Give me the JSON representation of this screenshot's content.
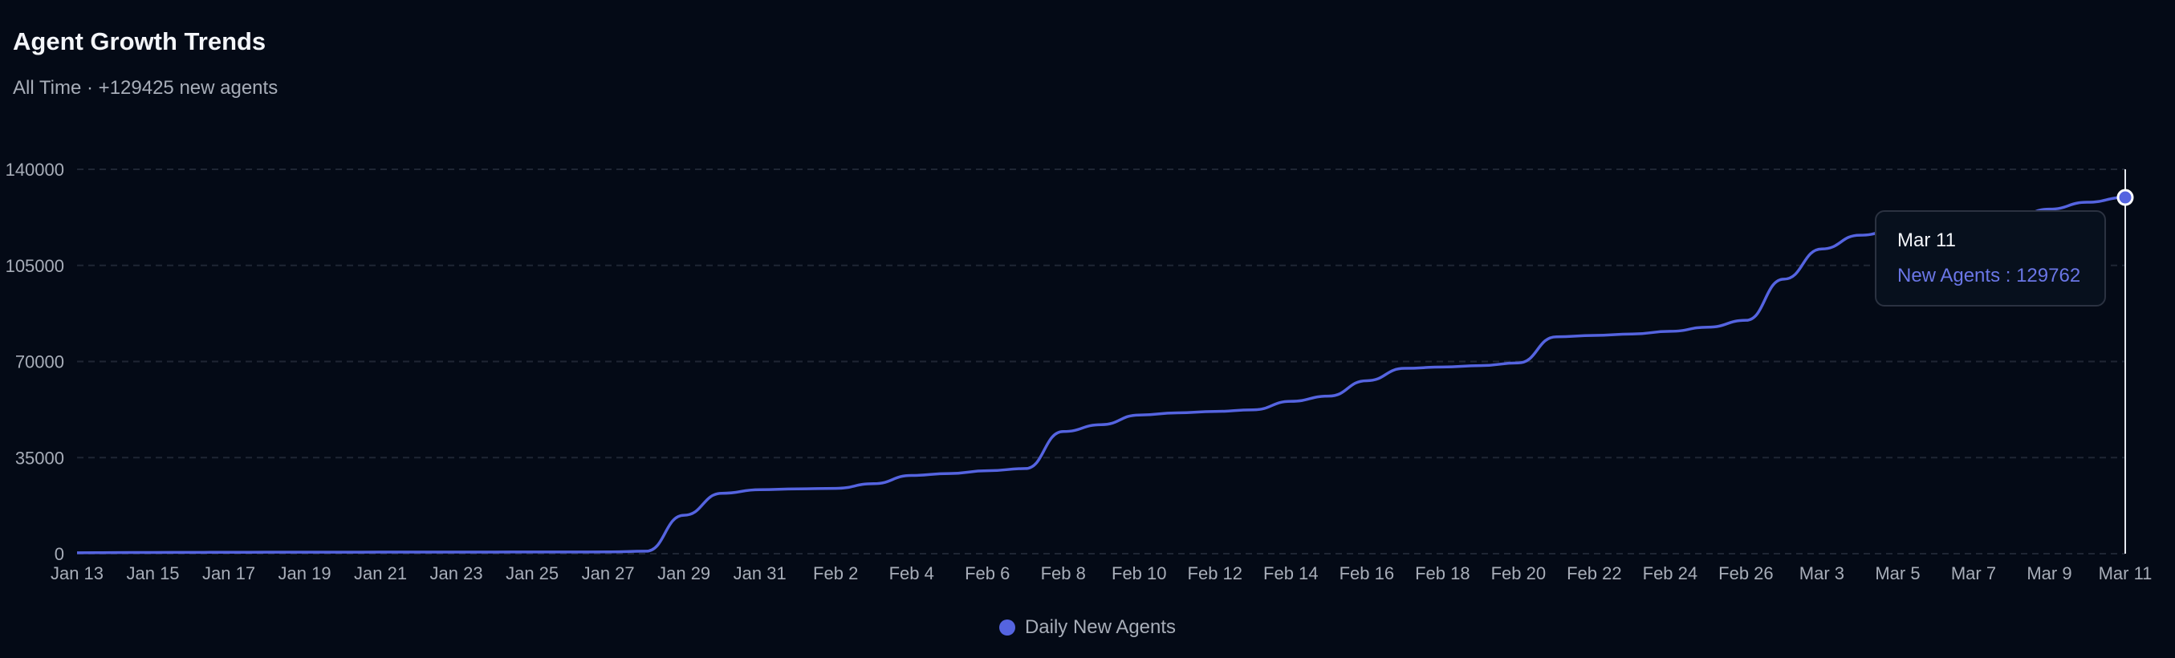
{
  "header": {
    "title": "Agent Growth Trends",
    "subtitle": "All Time · +129425 new agents"
  },
  "tooltip": {
    "date": "Mar 11",
    "label": "New Agents : 129762"
  },
  "legend": {
    "label": "Daily New Agents",
    "color": "#5564e0"
  },
  "colors": {
    "background": "#040a16",
    "line": "#5564e0",
    "grid": "#1f2634"
  },
  "chart_data": {
    "type": "line",
    "title": "Agent Growth Trends",
    "subtitle": "All Time · +129425 new agents",
    "xlabel": "",
    "ylabel": "",
    "ylim": [
      0,
      140000
    ],
    "y_ticks": [
      0,
      35000,
      70000,
      105000,
      140000
    ],
    "y_tick_labels": [
      "0",
      "35000",
      "70000",
      "105000",
      "140000"
    ],
    "grid": true,
    "legend_position": "bottom",
    "x_labels": [
      "Jan 13",
      "Jan 15",
      "Jan 17",
      "Jan 19",
      "Jan 21",
      "Jan 23",
      "Jan 25",
      "Jan 27",
      "Jan 29",
      "Jan 31",
      "Feb 2",
      "Feb 4",
      "Feb 6",
      "Feb 8",
      "Feb 10",
      "Feb 12",
      "Feb 14",
      "Feb 16",
      "Feb 18",
      "Feb 20",
      "Feb 22",
      "Feb 24",
      "Feb 26",
      "Mar 3",
      "Mar 5",
      "Mar 7",
      "Mar 9",
      "Mar 11"
    ],
    "series": [
      {
        "name": "Daily New Agents",
        "x": [
          "Jan 13",
          "Jan 14",
          "Jan 15",
          "Jan 16",
          "Jan 17",
          "Jan 18",
          "Jan 19",
          "Jan 20",
          "Jan 21",
          "Jan 22",
          "Jan 23",
          "Jan 24",
          "Jan 25",
          "Jan 26",
          "Jan 27",
          "Jan 28",
          "Jan 29",
          "Jan 30",
          "Jan 31",
          "Feb 1",
          "Feb 2",
          "Feb 3",
          "Feb 4",
          "Feb 5",
          "Feb 6",
          "Feb 7",
          "Feb 8",
          "Feb 9",
          "Feb 10",
          "Feb 11",
          "Feb 12",
          "Feb 13",
          "Feb 14",
          "Feb 15",
          "Feb 16",
          "Feb 17",
          "Feb 18",
          "Feb 19",
          "Feb 20",
          "Feb 21",
          "Feb 22",
          "Feb 23",
          "Feb 24",
          "Feb 25",
          "Feb 26",
          "Feb 27",
          "Mar 3",
          "Mar 4",
          "Mar 5",
          "Mar 6",
          "Mar 7",
          "Mar 8",
          "Mar 9",
          "Mar 10",
          "Mar 11"
        ],
        "values": [
          337,
          400,
          450,
          480,
          510,
          530,
          550,
          560,
          570,
          580,
          590,
          600,
          610,
          620,
          640,
          900,
          14000,
          22000,
          23300,
          23600,
          23800,
          25500,
          28500,
          29200,
          30200,
          31000,
          44500,
          47000,
          50500,
          51300,
          51800,
          52400,
          55500,
          57400,
          63000,
          67500,
          68000,
          68500,
          69500,
          79000,
          79500,
          80000,
          81000,
          82500,
          85000,
          100000,
          111000,
          116000,
          118000,
          119000,
          120000,
          122000,
          125500,
          128000,
          129762
        ]
      }
    ]
  }
}
